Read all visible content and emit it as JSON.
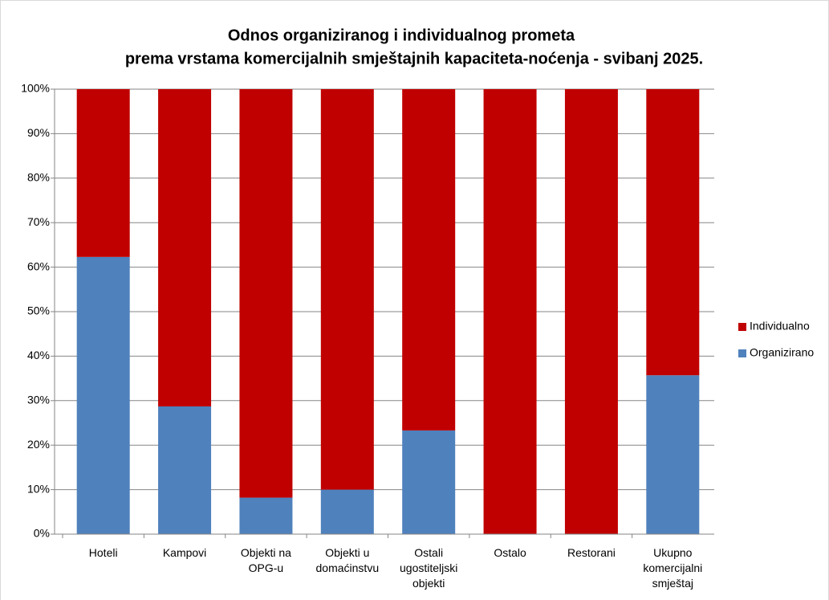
{
  "chart_data": {
    "type": "stacked_bar",
    "title": [
      "Odnos organiziranog i individualnog prometa",
      "prema vrstama komercijalnih smještajnih kapaciteta-noćenja - svibanj 2025."
    ],
    "categories": [
      "Hoteli",
      "Kampovi",
      "Objekti na OPG-u",
      "Objekti u domaćinstvu",
      "Ostali ugostiteljski objekti",
      "Ostalo",
      "Restorani",
      "Ukupno komercijalni smještaj"
    ],
    "series": [
      {
        "name": "Organizirano",
        "color": "#4f81bd",
        "values": [
          62.3,
          28.7,
          8.2,
          10.0,
          23.3,
          0,
          0,
          35.7
        ]
      },
      {
        "name": "Individualno",
        "color": "#c00000",
        "values": [
          37.7,
          71.3,
          91.8,
          90.0,
          76.7,
          100,
          100,
          64.3
        ]
      }
    ],
    "ylim": [
      0,
      100
    ],
    "yticks": [
      {
        "value": 0,
        "label": "0%"
      },
      {
        "value": 10,
        "label": "10%"
      },
      {
        "value": 20,
        "label": "20%"
      },
      {
        "value": 30,
        "label": "30%"
      },
      {
        "value": 40,
        "label": "40%"
      },
      {
        "value": 50,
        "label": "50%"
      },
      {
        "value": 60,
        "label": "60%"
      },
      {
        "value": 70,
        "label": "70%"
      },
      {
        "value": 80,
        "label": "80%"
      },
      {
        "value": 90,
        "label": "90%"
      },
      {
        "value": 100,
        "label": "100%"
      }
    ],
    "grid": true,
    "legend": "right"
  }
}
